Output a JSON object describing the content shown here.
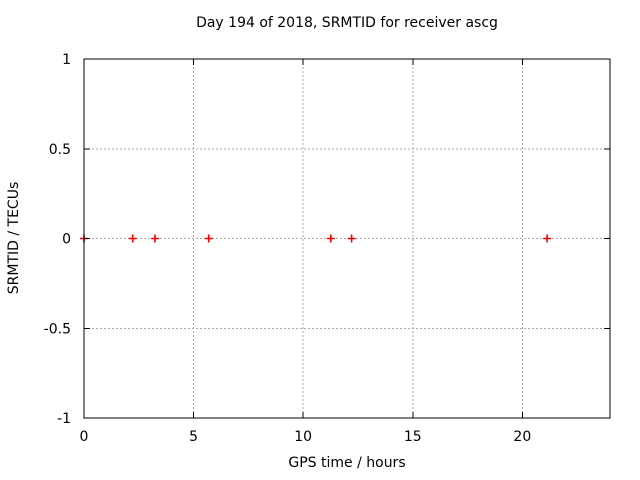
{
  "chart_data": {
    "type": "scatter",
    "title": "Day 194 of 2018, SRMTID for receiver ascg",
    "xlabel": "GPS time / hours",
    "ylabel": "SRMTID / TECUs",
    "xlim": [
      0,
      24
    ],
    "ylim": [
      -1,
      1
    ],
    "xticks": [
      0,
      5,
      10,
      15,
      20
    ],
    "xtick_labels": [
      "0",
      "5",
      "10",
      "15",
      "20"
    ],
    "yticks": [
      -1,
      -0.5,
      0,
      0.5,
      1
    ],
    "ytick_labels": [
      "-1",
      "-0.5",
      "0",
      "0.5",
      "1"
    ],
    "grid": true,
    "legend": "none",
    "series": [
      {
        "name": "SRMTID",
        "marker": "plus",
        "color": "#ff0000",
        "x": [
          0.0,
          2.22,
          3.24,
          5.69,
          11.26,
          12.21,
          21.13
        ],
        "y": [
          0,
          0,
          0,
          0,
          0,
          0,
          0
        ]
      }
    ],
    "colors": {
      "background": "#ffffff",
      "border": "#000000",
      "grid": "#a9a9a9",
      "text": "#000000"
    }
  }
}
